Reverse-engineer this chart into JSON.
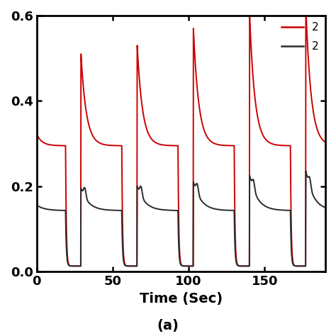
{
  "xlabel": "Time (Sec)",
  "subtitle": "(a)",
  "xlim": [
    0,
    190
  ],
  "ylim": [
    0.0,
    0.6
  ],
  "xticks": [
    0,
    50,
    100,
    150
  ],
  "yticks": [
    0.0,
    0.2,
    0.4,
    0.6
  ],
  "line1_color": "#cc0000",
  "line2_color": "#2b2b2b",
  "legend_labels": [
    "2",
    "2"
  ],
  "background_color": "#ffffff",
  "tick_fontsize": 13,
  "label_fontsize": 14,
  "linewidth": 1.4
}
